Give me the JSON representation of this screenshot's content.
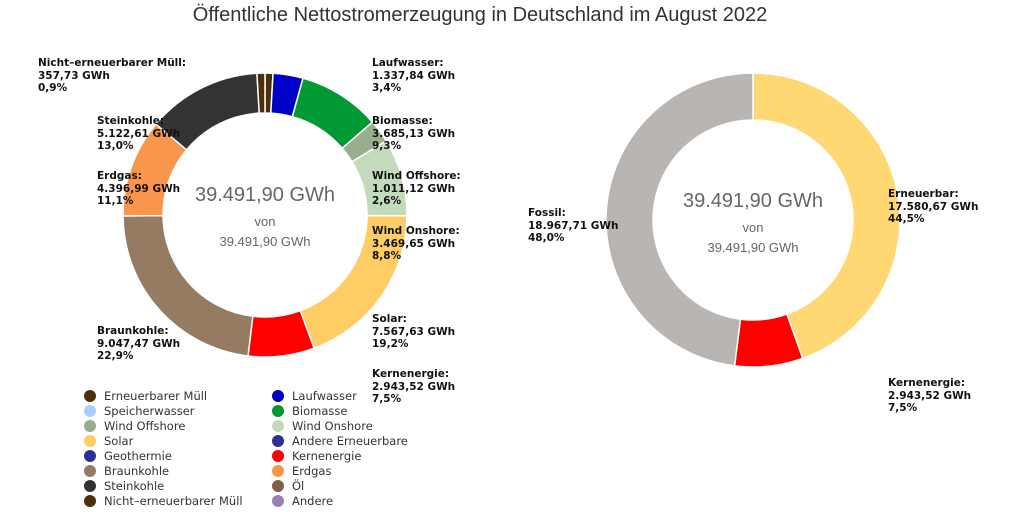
{
  "chart_data": [
    {
      "type": "pie",
      "title": "Öffentliche Nettostromerzeugung in Deutschland im August 2022",
      "center": {
        "value": "39.491,90 GWh",
        "of_label": "von",
        "total": "39.491,90 GWh"
      },
      "slices": [
        {
          "name": "Erneuerbarer Müll",
          "percent": 0.9,
          "color": "#4d2f0c",
          "label": null
        },
        {
          "name": "Laufwasser",
          "value": "1.337,84 GWh",
          "percent": 3.4,
          "color": "#0000c8",
          "label": "Laufwasser:"
        },
        {
          "name": "Biomasse",
          "value": "3.685,13 GWh",
          "percent": 9.3,
          "color": "#009933",
          "label": "Biomasse:"
        },
        {
          "name": "Wind Offshore",
          "value": "1.011,12 GWh",
          "percent": 2.6,
          "color": "#99ad8f",
          "label": "Wind Offshore:"
        },
        {
          "name": "Wind Onshore",
          "value": "3.469,65 GWh",
          "percent": 8.8,
          "color": "#c4dabd",
          "label": "Wind Onshore:"
        },
        {
          "name": "Solar",
          "value": "7.567,63 GWh",
          "percent": 19.2,
          "color": "#ffcc66",
          "label": "Solar:"
        },
        {
          "name": "Kernenergie",
          "value": "2.943,52 GWh",
          "percent": 7.5,
          "color": "#ff0000",
          "label": "Kernenergie:"
        },
        {
          "name": "Braunkohle",
          "value": "9.047,47 GWh",
          "percent": 22.9,
          "color": "#957b62",
          "label": "Braunkohle:"
        },
        {
          "name": "Erdgas",
          "value": "4.396,99 GWh",
          "percent": 11.1,
          "color": "#f9964b",
          "label": "Erdgas:"
        },
        {
          "name": "Steinkohle",
          "value": "5.122,61 GWh",
          "percent": 13.0,
          "color": "#333333",
          "label": "Steinkohle:"
        },
        {
          "name": "Nicht-erneuerbarer Müll",
          "value": "357,73 GWh",
          "percent": 0.9,
          "color": "#4d2f0c",
          "label": "Nicht–erneuerbarer Müll:"
        }
      ],
      "percent_labels": {
        "Laufwasser": "3,4%",
        "Biomasse": "9,3%",
        "Wind Offshore": "2,6%",
        "Wind Onshore": "8,8%",
        "Solar": "19,2%",
        "Kernenergie": "7,5%",
        "Braunkohle": "22,9%",
        "Erdgas": "11,1%",
        "Steinkohle": "13,0%",
        "Nicht-erneuerbarer Müll": "0,9%"
      },
      "legend": [
        {
          "name": "Erneuerbarer Müll",
          "color": "#4d2f0c"
        },
        {
          "name": "Laufwasser",
          "color": "#0000c8"
        },
        {
          "name": "Speicherwasser",
          "color": "#aaccff"
        },
        {
          "name": "Biomasse",
          "color": "#009933"
        },
        {
          "name": "Wind Offshore",
          "color": "#99ad8f"
        },
        {
          "name": "Wind Onshore",
          "color": "#c4dabd"
        },
        {
          "name": "Solar",
          "color": "#ffcc66"
        },
        {
          "name": "Andere Erneuerbare",
          "color": "#2e2e99"
        },
        {
          "name": "Geothermie",
          "color": "#2e2e99"
        },
        {
          "name": "Kernenergie",
          "color": "#ff0000"
        },
        {
          "name": "Braunkohle",
          "color": "#957b62"
        },
        {
          "name": "Erdgas",
          "color": "#f9964b"
        },
        {
          "name": "Steinkohle",
          "color": "#333333"
        },
        {
          "name": "Öl",
          "color": "#7f5f45"
        },
        {
          "name": "Nicht–erneuerbarer Müll",
          "color": "#4d2f0c"
        },
        {
          "name": "Andere",
          "color": "#9a7fb5"
        }
      ]
    },
    {
      "type": "pie",
      "center": {
        "value": "39.491,90 GWh",
        "of_label": "von",
        "total": "39.491,90 GWh"
      },
      "slices": [
        {
          "name": "Erneuerbar",
          "value": "17.580,67 GWh",
          "percent": 44.5,
          "percent_label": "44,5%",
          "color": "#ffd873",
          "label": "Erneuerbar:"
        },
        {
          "name": "Kernenergie",
          "value": "2.943,52 GWh",
          "percent": 7.5,
          "percent_label": "7,5%",
          "color": "#ff0000",
          "label": "Kernenergie:"
        },
        {
          "name": "Fossil",
          "value": "18.967,71 GWh",
          "percent": 48.0,
          "percent_label": "48,0%",
          "color": "#b9b5b2",
          "label": "Fossil:"
        }
      ]
    }
  ]
}
